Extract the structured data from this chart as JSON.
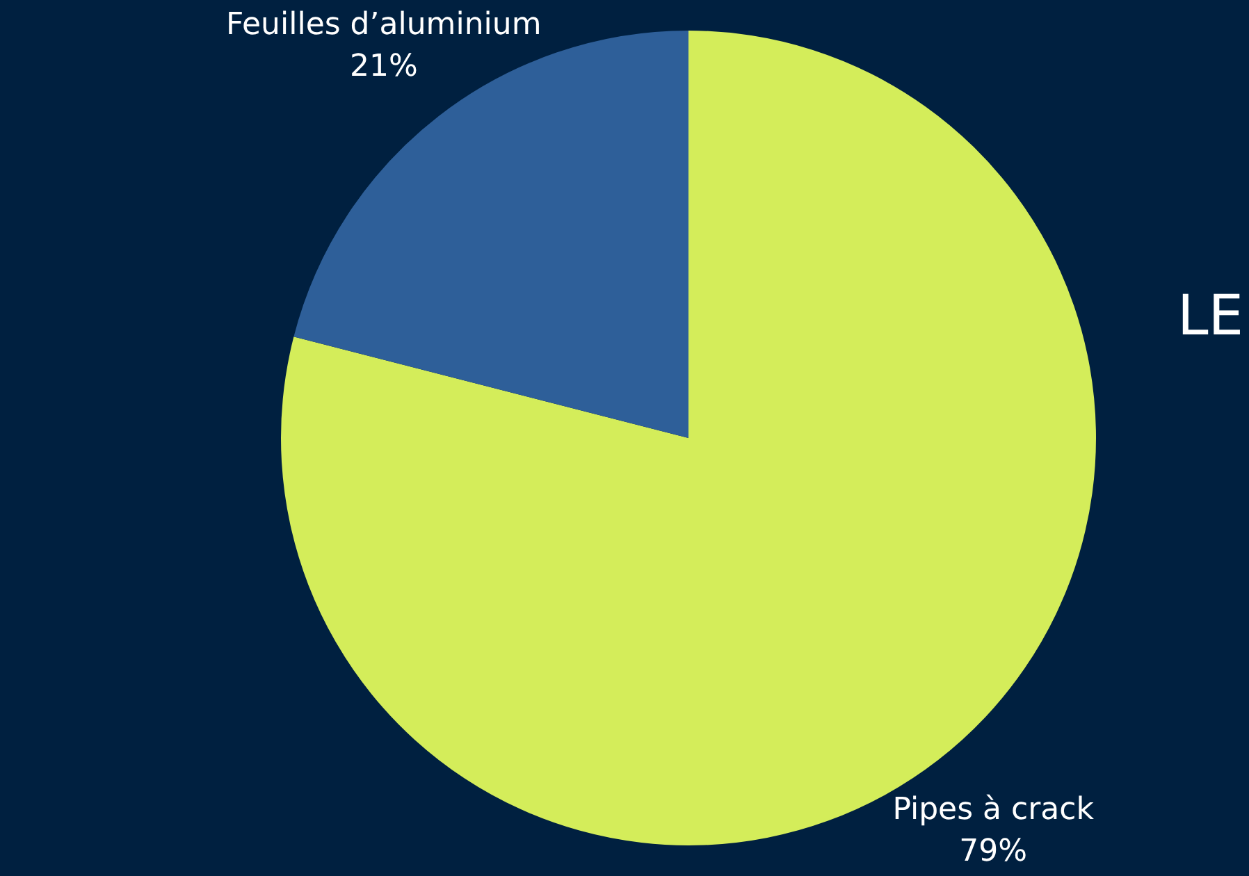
{
  "chart_data": {
    "type": "pie",
    "categories": [
      "Pipes à crack",
      "Feuilles d’aluminium"
    ],
    "values": [
      79,
      21
    ],
    "colors": [
      "#d4ed5a",
      "#2e5f99"
    ],
    "value_labels": [
      "79%",
      "21%"
    ],
    "legend": false,
    "annotations": [
      "LE"
    ]
  }
}
